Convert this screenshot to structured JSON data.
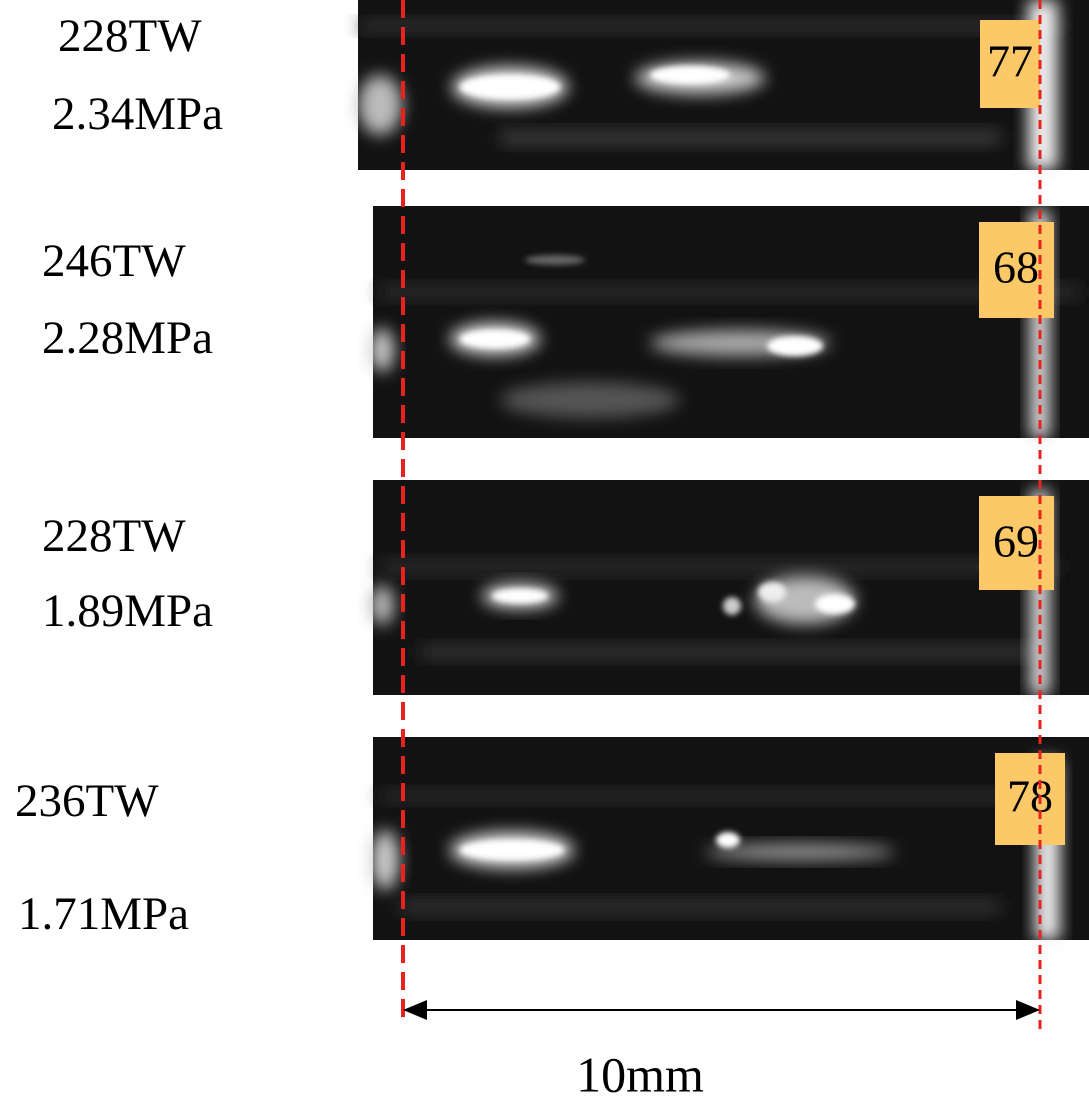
{
  "panels": [
    {
      "power": "228TW",
      "pressure": "2.34MPa",
      "shot": "77"
    },
    {
      "power": "246TW",
      "pressure": "2.28MPa",
      "shot": "68"
    },
    {
      "power": "228TW",
      "pressure": "1.89MPa",
      "shot": "69"
    },
    {
      "power": "236TW",
      "pressure": "1.71MPa",
      "shot": "78"
    }
  ],
  "scale": {
    "label": "10mm"
  }
}
